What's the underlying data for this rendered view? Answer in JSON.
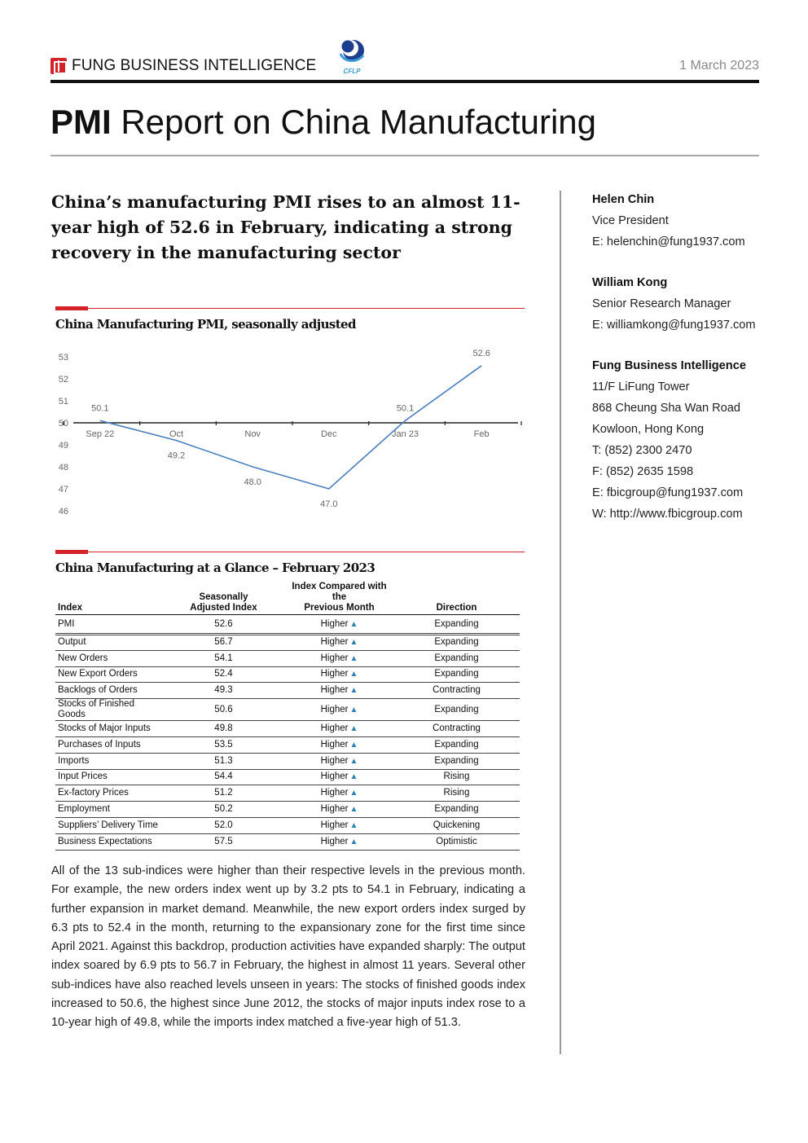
{
  "header": {
    "brand": "FUNG BUSINESS INTELLIGENCE",
    "partner_logo_text": "CFLP",
    "date": "1 March 2023"
  },
  "title": {
    "bold": "PMI",
    "rest": " Report on China Manufacturing"
  },
  "headline": "China’s manufacturing PMI rises to an almost 11-year high of 52.6 in February, indicating a strong recovery in the manufacturing sector",
  "chart_section": {
    "title": "China Manufacturing PMI, seasonally adjusted"
  },
  "chart_data": {
    "type": "line",
    "title": "China Manufacturing PMI, seasonally adjusted",
    "categories": [
      "Sep 22",
      "Oct",
      "Nov",
      "Dec",
      "Jan 23",
      "Feb"
    ],
    "values": [
      50.1,
      49.2,
      48.0,
      47.0,
      50.1,
      52.6
    ],
    "value_labels": [
      "50.1",
      "49.2",
      "48.0",
      "47.0",
      "50.1",
      "52.6"
    ],
    "y_ticks": [
      "46",
      "47",
      "48",
      "49",
      "50",
      "51",
      "52",
      "53"
    ],
    "ylim": [
      46,
      53
    ],
    "x_axis_crosses_at": 50,
    "grid": false,
    "line_color": "#4a7fbd"
  },
  "table_section": {
    "title": "China Manufacturing at a Glance – February 2023"
  },
  "table": {
    "headers": {
      "index": "Index",
      "value_line1": "Seasonally",
      "value_line2": "Adjusted Index",
      "compare_line1": "Index Compared with the",
      "compare_line2": "Previous Month",
      "direction": "Direction"
    },
    "arrow": "▲",
    "rows": [
      {
        "index": "PMI",
        "value": "52.6",
        "compare": "Higher",
        "direction": "Expanding"
      },
      {
        "index": "Output",
        "value": "56.7",
        "compare": "Higher",
        "direction": "Expanding"
      },
      {
        "index": "New Orders",
        "value": "54.1",
        "compare": "Higher",
        "direction": "Expanding"
      },
      {
        "index": "New Export Orders",
        "value": "52.4",
        "compare": "Higher",
        "direction": "Expanding"
      },
      {
        "index": "Backlogs of Orders",
        "value": "49.3",
        "compare": "Higher",
        "direction": "Contracting"
      },
      {
        "index": "Stocks of Finished Goods",
        "value": "50.6",
        "compare": "Higher",
        "direction": "Expanding"
      },
      {
        "index": "Stocks of Major Inputs",
        "value": "49.8",
        "compare": "Higher",
        "direction": "Contracting"
      },
      {
        "index": "Purchases of Inputs",
        "value": "53.5",
        "compare": "Higher",
        "direction": "Expanding"
      },
      {
        "index": "Imports",
        "value": "51.3",
        "compare": "Higher",
        "direction": "Expanding"
      },
      {
        "index": "Input Prices",
        "value": "54.4",
        "compare": "Higher",
        "direction": "Rising"
      },
      {
        "index": "Ex-factory Prices",
        "value": "51.2",
        "compare": "Higher",
        "direction": "Rising"
      },
      {
        "index": "Employment",
        "value": "50.2",
        "compare": "Higher",
        "direction": "Expanding"
      },
      {
        "index": "Suppliers’ Delivery Time",
        "value": "52.0",
        "compare": "Higher",
        "direction": "Quickening"
      },
      {
        "index": "Business Expectations",
        "value": "57.5",
        "compare": "Higher",
        "direction": "Optimistic"
      }
    ]
  },
  "body_text": "All of the 13 sub-indices were higher than their respective levels in the previous month. For example, the new orders index went up by 3.2 pts to 54.1 in February, indicating a further expansion in market demand. Meanwhile, the new export orders index surged by 6.3 pts to 52.4 in the month, returning to the expansionary zone for the first time since April 2021. Against this backdrop, production activities have expanded sharply: The output index soared by 6.9 pts to 56.7 in February, the highest in almost 11 years. Several other sub-indices have also reached levels unseen in years: The stocks of finished goods index increased to 50.6, the highest since June 2012, the stocks of major inputs index rose to a 10-year high of 49.8, while the imports index matched a five-year high of 51.3.",
  "contacts": [
    {
      "name": "Helen Chin",
      "lines": [
        "Vice President",
        "E: helenchin@fung1937.com"
      ]
    },
    {
      "name": "William Kong",
      "lines": [
        "Senior Research Manager",
        "E: williamkong@fung1937.com"
      ]
    },
    {
      "name": "Fung Business Intelligence",
      "lines": [
        "11/F LiFung Tower",
        "868 Cheung Sha Wan Road",
        "Kowloon, Hong Kong",
        "T: (852) 2300 2470",
        "F: (852) 2635 1598",
        "E: fbicgroup@fung1937.com",
        "W: http://www.fbicgroup.com"
      ]
    }
  ],
  "colors": {
    "accent_red": "#d2232a",
    "chart_line": "#4a7fbd",
    "arrow_blue": "#2e7fb6"
  }
}
